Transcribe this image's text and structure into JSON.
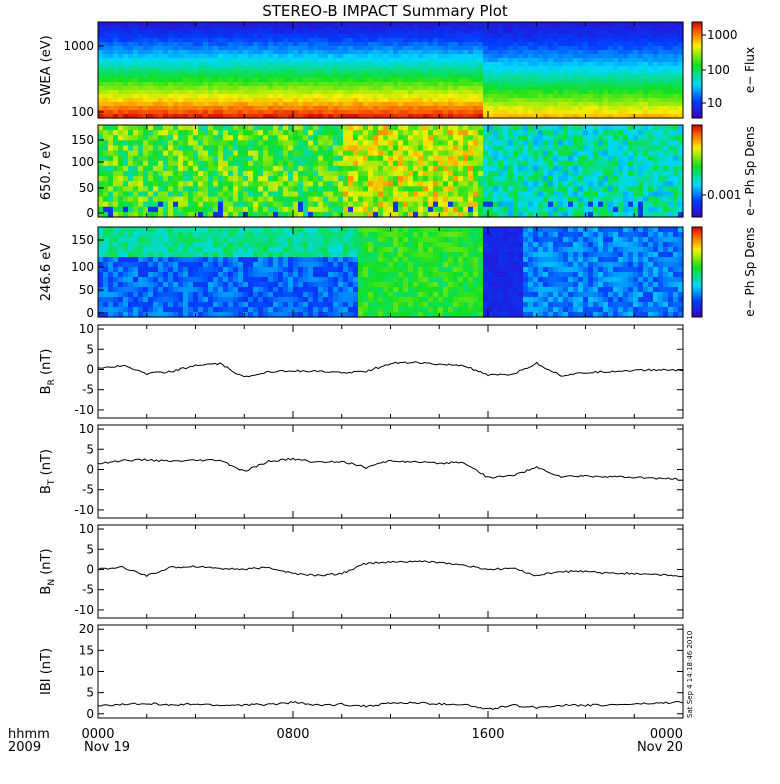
{
  "title": "STEREO-B IMPACT Summary Plot",
  "x_axis": {
    "ticks": [
      "0000",
      "0800",
      "1600",
      "0000"
    ],
    "dates": [
      "Nov 19",
      "Nov 20"
    ],
    "left_labels": [
      "hhmm",
      "2009"
    ]
  },
  "timestamp": "Sat Sep  4 14:18:46 2010",
  "colorbars": [
    {
      "label": "e− Flux",
      "ticks": [
        "1000",
        "100",
        "10"
      ]
    },
    {
      "label": "e− Ph Sp Dens",
      "ticks": [
        "0.001"
      ]
    },
    {
      "label": "e− Ph Sp Dens",
      "ticks": []
    }
  ],
  "spectrograms": [
    {
      "ylabel": "SWEA (eV)",
      "yticks": [
        "1000",
        "100"
      ]
    },
    {
      "ylabel": "650.7 eV",
      "yticks": [
        "150",
        "100",
        "50",
        "0"
      ]
    },
    {
      "ylabel": "246.6 eV",
      "yticks": [
        "150",
        "100",
        "50",
        "0"
      ]
    }
  ],
  "chart_data": [
    {
      "type": "heatmap",
      "title": "STEREO-B IMPACT Summary Plot",
      "ylabel": "SWEA (eV)",
      "yscale": "log",
      "ylim": [
        90,
        2000
      ],
      "colorbar_label": "e− Flux",
      "colorbar_scale": "log"
    },
    {
      "type": "heatmap",
      "ylabel": "650.7 eV",
      "ylim": [
        0,
        180
      ],
      "colorbar_label": "e− Ph Sp Dens"
    },
    {
      "type": "heatmap",
      "ylabel": "246.6 eV",
      "ylim": [
        0,
        180
      ],
      "colorbar_label": "e− Ph Sp Dens"
    },
    {
      "type": "line",
      "ylabel": "B_R (nT)",
      "ylim": [
        -12,
        11
      ],
      "yticks": [
        "10",
        "5",
        "0",
        "-5",
        "-10"
      ],
      "x": [
        0,
        1,
        2,
        3,
        4,
        5,
        6,
        7,
        8,
        9,
        10,
        11,
        12,
        13,
        14,
        15,
        16,
        17,
        18,
        19,
        20,
        21,
        22,
        23,
        24
      ],
      "values": [
        0.3,
        1.0,
        -1.0,
        -0.5,
        1.0,
        1.4,
        -2.0,
        -0.5,
        -0.3,
        -0.5,
        -0.8,
        -0.5,
        1.5,
        1.8,
        1.2,
        1.0,
        -1.5,
        -1.2,
        1.5,
        -1.5,
        -0.8,
        -0.5,
        -0.2,
        -0.1,
        -0.2
      ]
    },
    {
      "type": "line",
      "ylabel": "B_T (nT)",
      "ylim": [
        -12,
        11
      ],
      "yticks": [
        "10",
        "5",
        "0",
        "-5",
        "-10"
      ],
      "x": [
        0,
        1,
        2,
        3,
        4,
        5,
        6,
        7,
        8,
        9,
        10,
        11,
        12,
        13,
        14,
        15,
        16,
        17,
        18,
        19,
        20,
        21,
        22,
        23,
        24
      ],
      "values": [
        1.5,
        2.2,
        2.4,
        2.0,
        2.2,
        2.3,
        -0.5,
        2.0,
        2.6,
        1.8,
        2.0,
        0.5,
        2.2,
        1.8,
        1.5,
        1.8,
        -2.0,
        -1.5,
        0.5,
        -1.8,
        -1.6,
        -1.8,
        -2.0,
        -2.2,
        -2.5
      ]
    },
    {
      "type": "line",
      "ylabel": "B_N (nT)",
      "ylim": [
        -12,
        11
      ],
      "yticks": [
        "10",
        "5",
        "0",
        "-5",
        "-10"
      ],
      "x": [
        0,
        1,
        2,
        3,
        4,
        5,
        6,
        7,
        8,
        9,
        10,
        11,
        12,
        13,
        14,
        15,
        16,
        17,
        18,
        19,
        20,
        21,
        22,
        23,
        24
      ],
      "values": [
        0.0,
        0.5,
        -1.5,
        0.5,
        0.8,
        0.3,
        0.0,
        0.5,
        -1.0,
        -1.5,
        -1.0,
        1.5,
        1.8,
        2.0,
        1.8,
        1.0,
        0.0,
        0.3,
        -1.5,
        -0.5,
        -0.5,
        -1.0,
        -1.0,
        -1.2,
        -1.8
      ]
    },
    {
      "type": "line",
      "ylabel": "|B| (nT)",
      "ylim": [
        -1,
        21
      ],
      "yticks": [
        "20",
        "15",
        "10",
        "5",
        "0"
      ],
      "x": [
        0,
        1,
        2,
        3,
        4,
        5,
        6,
        7,
        8,
        9,
        10,
        11,
        12,
        13,
        14,
        15,
        16,
        17,
        18,
        19,
        20,
        21,
        22,
        23,
        24
      ],
      "values": [
        1.8,
        2.2,
        2.5,
        2.0,
        2.3,
        2.0,
        2.1,
        2.2,
        2.7,
        2.0,
        2.2,
        1.8,
        2.5,
        2.6,
        2.3,
        2.2,
        1.0,
        2.0,
        1.5,
        2.0,
        2.0,
        2.1,
        2.3,
        2.5,
        2.8
      ]
    }
  ]
}
